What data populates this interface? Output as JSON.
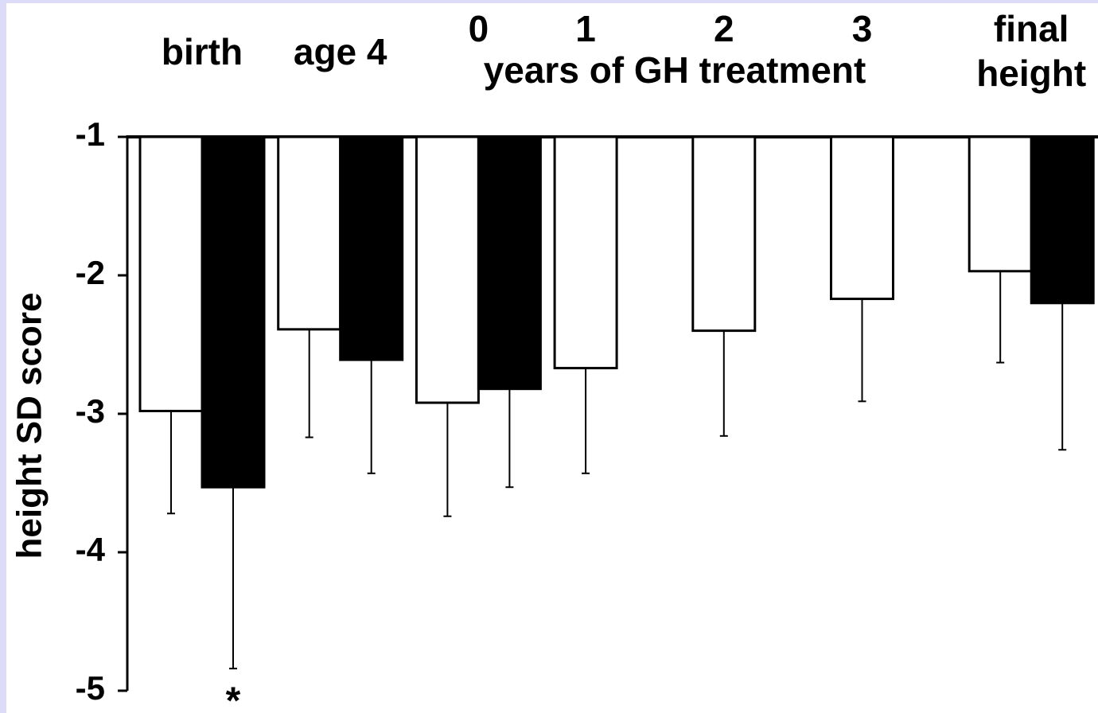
{
  "chart_data": {
    "type": "bar",
    "categories": [
      "birth",
      "age 4",
      "0",
      "1",
      "2",
      "3",
      "final height"
    ],
    "group_label": "years of GH treatment",
    "y_label": "height SD score",
    "annotation": "*",
    "series": [
      {
        "color": "#ffffff",
        "values": [
          -2.98,
          -2.39,
          -2.92,
          -2.67,
          -2.4,
          -2.17,
          -1.97
        ],
        "errors": [
          0.74,
          0.78,
          0.82,
          0.76,
          0.76,
          0.74,
          0.66
        ]
      },
      {
        "color": "#000000",
        "values": [
          -3.53,
          -2.61,
          -2.82,
          null,
          null,
          null,
          -2.2
        ],
        "errors": [
          1.31,
          0.82,
          0.71,
          null,
          null,
          null,
          1.06
        ]
      }
    ],
    "ylim": [
      -5,
      -1
    ],
    "yticks": [
      -1,
      -2,
      -3,
      -4,
      -5
    ]
  }
}
